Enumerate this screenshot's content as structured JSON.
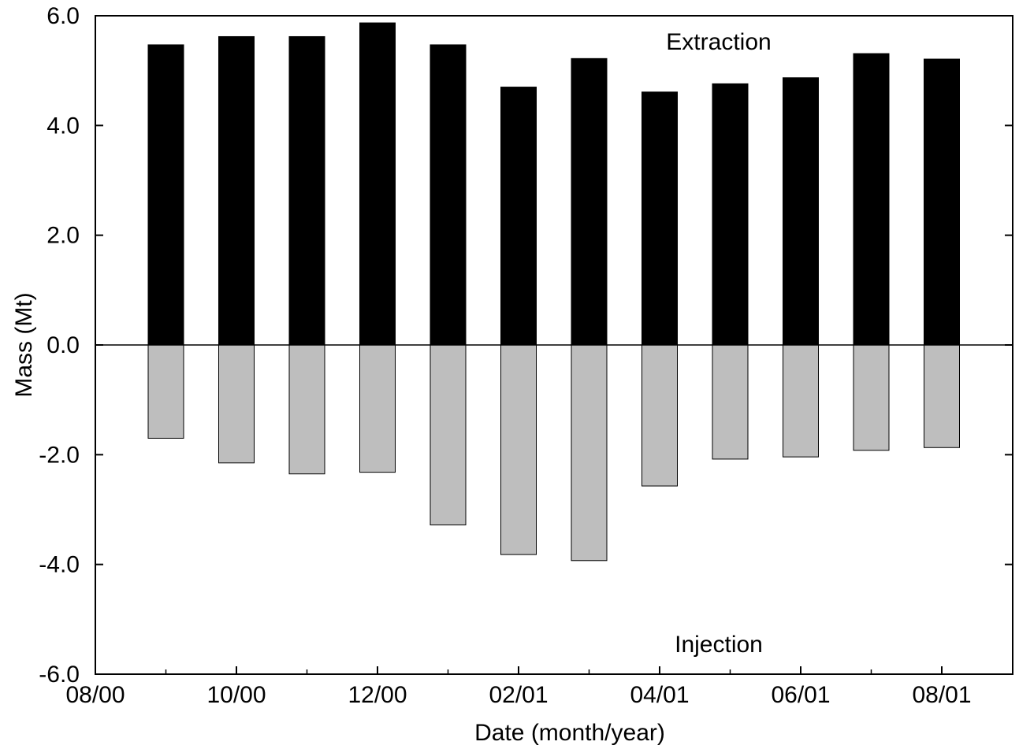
{
  "chart_data": {
    "type": "bar",
    "xlabel": "Date (month/year)",
    "ylabel": "Mass (Mt)",
    "ylim": [
      -6.0,
      6.0
    ],
    "yticks": [
      "-6.0",
      "-4.0",
      "-2.0",
      "0.0",
      "2.0",
      "4.0",
      "6.0"
    ],
    "xticks": [
      "08/00",
      "10/00",
      "12/00",
      "02/01",
      "04/01",
      "06/01",
      "08/01"
    ],
    "grid": false,
    "annotations": [
      "Extraction",
      "Injection"
    ],
    "categories": [
      "09/00",
      "10/00",
      "11/00",
      "12/00",
      "01/01",
      "02/01",
      "03/01",
      "04/01",
      "05/01",
      "06/01",
      "07/01",
      "08/01"
    ],
    "series": [
      {
        "name": "Extraction",
        "color": "#000000",
        "values": [
          5.47,
          5.62,
          5.62,
          5.87,
          5.47,
          4.7,
          5.22,
          4.61,
          4.76,
          4.87,
          5.31,
          5.21
        ]
      },
      {
        "name": "Injection",
        "color": "#bebebe",
        "values": [
          -1.7,
          -2.15,
          -2.35,
          -2.32,
          -3.28,
          -3.82,
          -3.93,
          -2.57,
          -2.08,
          -2.04,
          -1.92,
          -1.87
        ]
      }
    ]
  }
}
